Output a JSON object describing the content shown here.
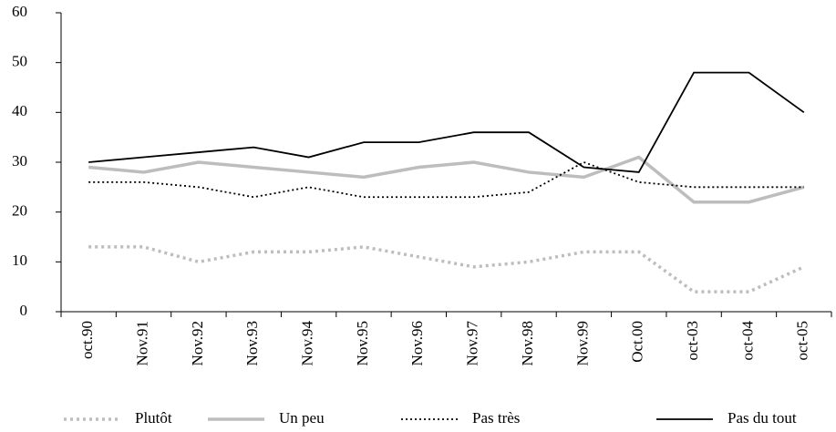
{
  "chart_data": {
    "type": "line",
    "categories": [
      "oct.90",
      "Nov.91",
      "Nov.92",
      "Nov.93",
      "Nov.94",
      "Nov.95",
      "Nov.96",
      "Nov.97",
      "Nov.98",
      "Nov.99",
      "Oct.00",
      "oct-03",
      "oct-04",
      "oct-05"
    ],
    "series": [
      {
        "name": "Plutôt",
        "color": "#bdbdbd",
        "line_style": "dotted",
        "weight": "heavy",
        "values": [
          13,
          13,
          10,
          12,
          12,
          13,
          11,
          9,
          10,
          12,
          12,
          4,
          4,
          9
        ]
      },
      {
        "name": "Un peu",
        "color": "#bdbdbd",
        "line_style": "solid",
        "weight": "heavy",
        "values": [
          29,
          28,
          30,
          29,
          28,
          27,
          29,
          30,
          28,
          27,
          31,
          22,
          22,
          25
        ]
      },
      {
        "name": "Pas très",
        "color": "#000000",
        "line_style": "dotted",
        "weight": "light",
        "values": [
          26,
          26,
          25,
          23,
          25,
          23,
          23,
          23,
          24,
          30,
          26,
          25,
          25,
          25
        ]
      },
      {
        "name": "Pas du tout",
        "color": "#000000",
        "line_style": "solid",
        "weight": "light",
        "values": [
          30,
          31,
          32,
          33,
          31,
          34,
          34,
          36,
          36,
          29,
          28,
          48,
          48,
          40
        ]
      }
    ],
    "ylim": [
      0,
      60
    ],
    "yticks": [
      0,
      10,
      20,
      30,
      40,
      50,
      60
    ],
    "grid": false,
    "legend": "bottom"
  }
}
